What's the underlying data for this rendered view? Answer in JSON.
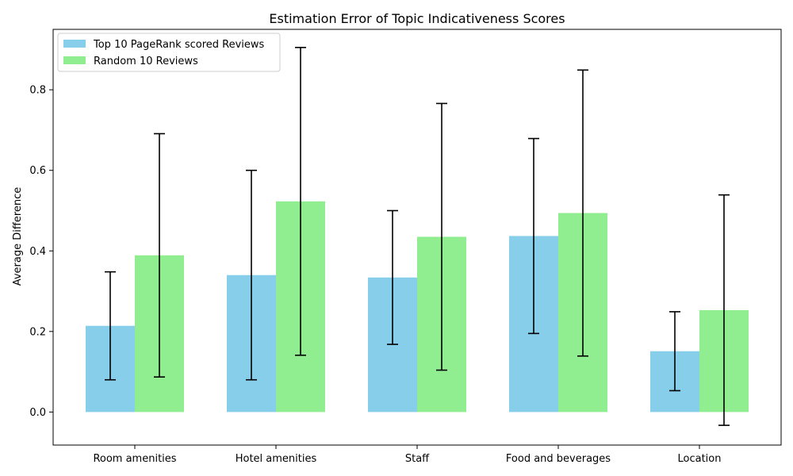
{
  "chart_data": {
    "type": "bar",
    "title": "Estimation Error of Topic Indicativeness Scores",
    "xlabel": "",
    "ylabel": "Average Difference",
    "categories": [
      "Room amenities",
      "Hotel amenities",
      "Staff",
      "Food and beverages",
      "Location"
    ],
    "series": [
      {
        "name": "Top 10 PageRank scored Reviews",
        "color": "#87ceeb",
        "values": [
          0.214,
          0.34,
          0.334,
          0.437,
          0.151
        ],
        "errors": [
          0.134,
          0.26,
          0.166,
          0.242,
          0.098
        ]
      },
      {
        "name": "Random 10 Reviews",
        "color": "#90ee90",
        "values": [
          0.389,
          0.523,
          0.435,
          0.494,
          0.253
        ],
        "errors": [
          0.302,
          0.382,
          0.331,
          0.355,
          0.286
        ]
      }
    ],
    "ylim": [
      -0.082,
      0.95
    ],
    "yticks": [
      0.0,
      0.2,
      0.4,
      0.6,
      0.8
    ],
    "ytick_labels": [
      "0.0",
      "0.2",
      "0.4",
      "0.6",
      "0.8"
    ],
    "grid": false,
    "legend_position": "top-left"
  }
}
